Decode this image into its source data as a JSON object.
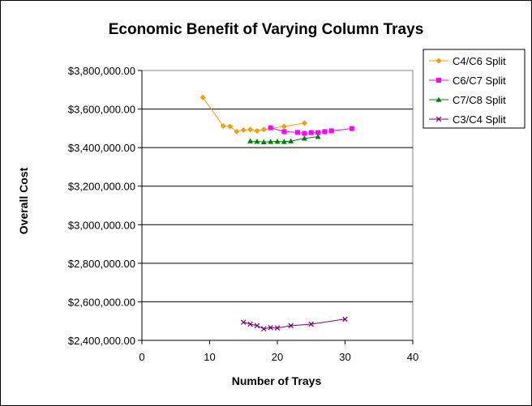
{
  "chart_data": {
    "type": "line",
    "title": "Economic Benefit of Varying Column Trays",
    "xlabel": "Number of Trays",
    "ylabel": "Overall Cost",
    "xlim": [
      0,
      40
    ],
    "ylim": [
      2400000,
      3800000
    ],
    "x_ticks": [
      0,
      10,
      20,
      30,
      40
    ],
    "x_tick_labels": [
      "0",
      "10",
      "20",
      "30",
      "40"
    ],
    "y_ticks": [
      2400000,
      2600000,
      2800000,
      3000000,
      3200000,
      3400000,
      3600000,
      3800000
    ],
    "y_tick_labels": [
      "$2,400,000.00",
      "$2,600,000.00",
      "$2,800,000.00",
      "$3,000,000.00",
      "$3,200,000.00",
      "$3,400,000.00",
      "$3,600,000.00",
      "$3,800,000.00"
    ],
    "grid": "horizontal",
    "legend_position": "right",
    "series": [
      {
        "name": "C4/C6 Split",
        "color": "#FF9900",
        "marker": "diamond",
        "points": [
          [
            9,
            3660000
          ],
          [
            12,
            3512000
          ],
          [
            13,
            3510000
          ],
          [
            14,
            3483000
          ],
          [
            15,
            3491000
          ],
          [
            16,
            3494000
          ],
          [
            17,
            3487000
          ],
          [
            18,
            3494000
          ],
          [
            21,
            3510000
          ],
          [
            24,
            3527000
          ]
        ]
      },
      {
        "name": "C6/C7 Split",
        "color": "#FF00FF",
        "marker": "square",
        "points": [
          [
            19,
            3503000
          ],
          [
            21,
            3483000
          ],
          [
            23,
            3479000
          ],
          [
            24,
            3474000
          ],
          [
            25,
            3478000
          ],
          [
            26,
            3478000
          ],
          [
            27,
            3483000
          ],
          [
            28,
            3487000
          ],
          [
            31,
            3499000
          ]
        ]
      },
      {
        "name": "C7/C8 Split",
        "color": "#008000",
        "marker": "triangle",
        "points": [
          [
            16,
            3434000
          ],
          [
            17,
            3432000
          ],
          [
            18,
            3429000
          ],
          [
            19,
            3431000
          ],
          [
            20,
            3432000
          ],
          [
            21,
            3431000
          ],
          [
            22,
            3434000
          ],
          [
            24,
            3448000
          ],
          [
            26,
            3457000
          ]
        ]
      },
      {
        "name": "C3/C4 Split",
        "color": "#800080",
        "marker": "x",
        "points": [
          [
            15,
            2494000
          ],
          [
            16,
            2484000
          ],
          [
            17,
            2476000
          ],
          [
            18,
            2460000
          ],
          [
            19,
            2466000
          ],
          [
            20,
            2464000
          ],
          [
            22,
            2476000
          ],
          [
            25,
            2484000
          ],
          [
            30,
            2510000
          ]
        ]
      }
    ]
  }
}
